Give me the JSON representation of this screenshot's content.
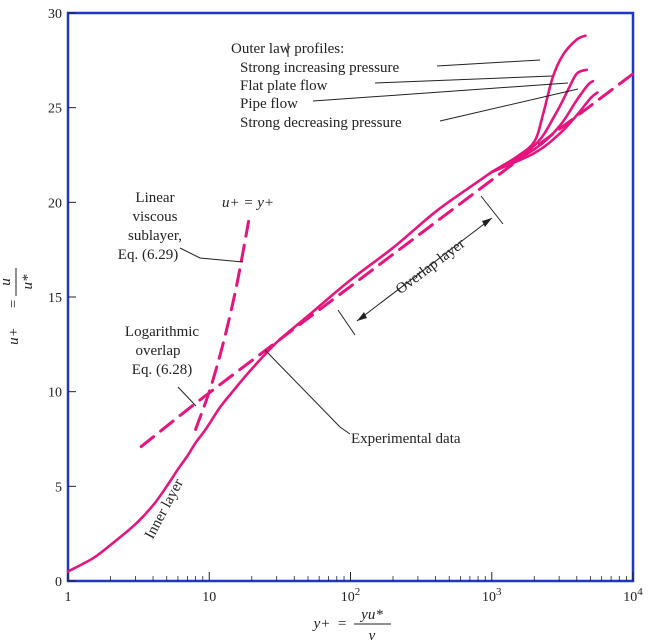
{
  "chart_data": {
    "type": "line",
    "title": "",
    "xlabel": "y+ = yu*/ν",
    "ylabel": "u+ = u/u*",
    "xscale": "log",
    "xlim": [
      1,
      10000
    ],
    "ylim": [
      0,
      30
    ],
    "x_ticks": [
      {
        "value": 1,
        "label": "1",
        "base": "",
        "exp": ""
      },
      {
        "value": 10,
        "label": "10",
        "base": "",
        "exp": ""
      },
      {
        "value": 100,
        "label": "",
        "base": "10",
        "exp": "2"
      },
      {
        "value": 1000,
        "label": "",
        "base": "10",
        "exp": "3"
      },
      {
        "value": 10000,
        "label": "",
        "base": "10",
        "exp": "4"
      }
    ],
    "y_ticks": [
      {
        "value": 0,
        "label": "0"
      },
      {
        "value": 5,
        "label": "5"
      },
      {
        "value": 10,
        "label": "10"
      },
      {
        "value": 15,
        "label": "15"
      },
      {
        "value": 20,
        "label": "20"
      },
      {
        "value": 25,
        "label": "25"
      },
      {
        "value": 30,
        "label": "30"
      }
    ],
    "colors": {
      "curve": "#e6147d",
      "frame": "#1f37c8",
      "ink": "#222222"
    },
    "series": [
      {
        "name": "Experimental data",
        "style": "solid",
        "x": [
          1,
          1.5,
          2,
          3,
          4,
          5,
          6,
          7,
          8,
          9,
          10,
          12,
          15,
          20,
          30,
          50,
          100,
          200,
          400,
          700,
          1000
        ],
        "y": [
          0.5,
          1.2,
          1.9,
          3.0,
          4.0,
          5.0,
          5.9,
          6.6,
          7.3,
          7.8,
          8.3,
          9.2,
          10.1,
          11.2,
          12.6,
          14.0,
          15.9,
          17.6,
          19.5,
          20.8,
          21.6
        ]
      },
      {
        "name": "Strong increasing pressure",
        "style": "solid",
        "x": [
          1000,
          1500,
          2000,
          2300,
          2700,
          3200,
          4000,
          4600
        ],
        "y": [
          21.6,
          22.4,
          23.2,
          24.6,
          26.6,
          27.8,
          28.6,
          28.8
        ]
      },
      {
        "name": "Flat plate flow",
        "style": "solid",
        "x": [
          1000,
          2000,
          2800,
          3500,
          4000,
          4700
        ],
        "y": [
          21.6,
          23.0,
          24.6,
          26.0,
          26.8,
          27.0
        ]
      },
      {
        "name": "Pipe flow",
        "style": "solid",
        "x": [
          1000,
          2000,
          3000,
          4000,
          4800,
          5200
        ],
        "y": [
          21.6,
          22.8,
          24.0,
          25.4,
          26.2,
          26.4
        ]
      },
      {
        "name": "Strong decreasing pressure",
        "style": "solid",
        "x": [
          1000,
          2000,
          3000,
          4000,
          5000,
          5600
        ],
        "y": [
          21.6,
          22.6,
          23.6,
          24.6,
          25.5,
          25.8
        ]
      },
      {
        "name": "u+ = y+",
        "style": "dashed",
        "x": [
          8,
          10,
          12,
          14,
          16,
          19
        ],
        "y": [
          8,
          10,
          12,
          14,
          16,
          19
        ]
      },
      {
        "name": "Logarithmic overlap",
        "style": "dashed",
        "x": [
          3.3,
          10,
          100,
          1000,
          10000
        ],
        "y": [
          7.1,
          9.94,
          15.56,
          21.18,
          26.79
        ]
      }
    ],
    "annotations": {
      "outer_law": [
        "Outer law profiles:",
        "Strong increasing pressure",
        "Flat plate flow",
        "Pipe flow",
        "Strong decreasing pressure"
      ],
      "linear_sublayer": [
        "Linear",
        "viscous",
        "sublayer,",
        "Eq. (6.29)"
      ],
      "log_overlap": [
        "Logarithmic",
        "overlap",
        "Eq. (6.28)"
      ],
      "u_eq_y": "u+ = y+",
      "overlap_layer": "Overlap layer",
      "experimental": "Experimental data",
      "inner_layer": "Inner layer"
    },
    "ylabel_parts": {
      "lhs": "u+",
      "eq": "=",
      "num": "u",
      "den": "u*"
    },
    "xlabel_parts": {
      "lhs": "y+",
      "eq": "=",
      "num": "yu*",
      "den": "ν"
    }
  }
}
